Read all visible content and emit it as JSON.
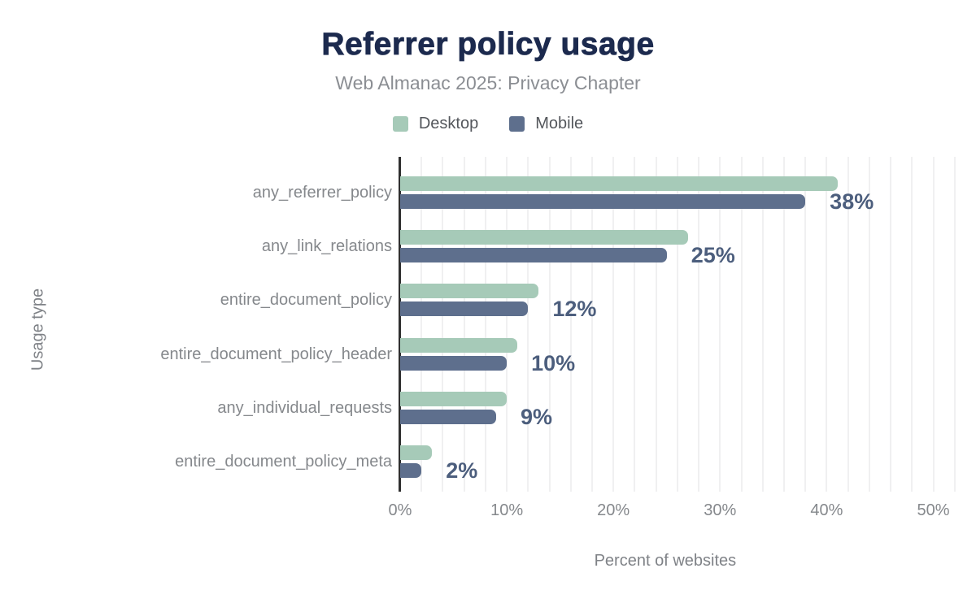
{
  "title": "Referrer policy usage",
  "subtitle": "Web Almanac 2025: Privacy Chapter",
  "colors": {
    "title_text": "#1c2a4e",
    "subtitle_text": "#8b8e93",
    "legend_text": "#54575c",
    "category_text": "#85888c",
    "tick_text": "#85888c",
    "axis_title_text": "#7f8287",
    "value_label_text": "#4c5e7d",
    "axis_line": "#2f2f2f",
    "gridline": "#f0f0f1",
    "desktop": "#a6cab8",
    "mobile": "#5e6f8d",
    "background": "#ffffff"
  },
  "chart_data": {
    "type": "bar",
    "orientation": "horizontal",
    "title": "Referrer policy usage",
    "subtitle": "Web Almanac 2025: Privacy Chapter",
    "categories": [
      "any_referrer_policy",
      "any_link_relations",
      "entire_document_policy",
      "entire_document_policy_header",
      "any_individual_requests",
      "entire_document_policy_meta"
    ],
    "series": [
      {
        "name": "Desktop",
        "values": [
          41,
          27,
          13,
          11,
          10,
          3
        ]
      },
      {
        "name": "Mobile",
        "values": [
          38,
          25,
          12,
          10,
          9,
          2
        ]
      }
    ],
    "value_labels": [
      "38%",
      "25%",
      "12%",
      "10%",
      "9%",
      "2%"
    ],
    "value_label_series": "Mobile",
    "xlabel": "Percent of websites",
    "ylabel": "Usage type",
    "x_ticks": [
      0,
      10,
      20,
      30,
      40,
      50
    ],
    "x_tick_labels": [
      "0%",
      "10%",
      "20%",
      "30%",
      "40%",
      "50%"
    ],
    "xlim": [
      0,
      52
    ],
    "grid_step": 2,
    "grid": true,
    "legend_position": "top"
  }
}
